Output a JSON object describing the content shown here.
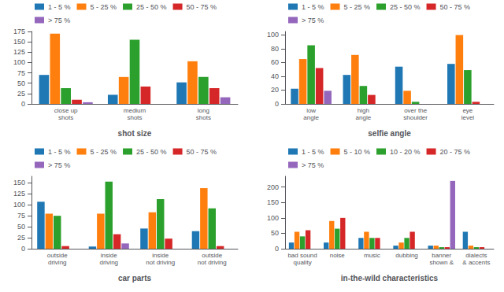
{
  "chart_data": [
    {
      "type": "bar",
      "xlabel": "shot size",
      "categories": [
        "close up\nshots",
        "medium\nshots",
        "long\nshots"
      ],
      "series": [
        {
          "name": "1 - 5 %",
          "color": "#1f77b4",
          "values": [
            70,
            22,
            52
          ]
        },
        {
          "name": "5 - 25 %",
          "color": "#ff7f0e",
          "values": [
            170,
            65,
            103
          ]
        },
        {
          "name": "25 - 50 %",
          "color": "#2ca02c",
          "values": [
            38,
            155,
            65
          ]
        },
        {
          "name": "50 - 75 %",
          "color": "#d62728",
          "values": [
            10,
            42,
            38
          ]
        },
        {
          "name": "> 75 %",
          "color": "#9467bd",
          "values": [
            4,
            0,
            16
          ]
        }
      ],
      "ylim": [
        0,
        175
      ],
      "yticks": [
        0,
        25,
        50,
        75,
        100,
        125,
        150,
        175
      ],
      "grid": false,
      "legend": "upper left"
    },
    {
      "type": "bar",
      "xlabel": "selfie angle",
      "categories": [
        "low\nangle",
        "high\nangle",
        "over the\nshoulder",
        "eye\nlevel"
      ],
      "series": [
        {
          "name": "1 - 5 %",
          "color": "#1f77b4",
          "values": [
            22,
            42,
            54,
            58
          ]
        },
        {
          "name": "5 - 25 %",
          "color": "#ff7f0e",
          "values": [
            65,
            71,
            19,
            100
          ]
        },
        {
          "name": "25 - 50 %",
          "color": "#2ca02c",
          "values": [
            85,
            26,
            3,
            49
          ]
        },
        {
          "name": "50 - 75 %",
          "color": "#d62728",
          "values": [
            52,
            13,
            0,
            3
          ]
        },
        {
          "name": "> 75 %",
          "color": "#9467bd",
          "values": [
            19,
            0,
            0,
            0
          ]
        }
      ],
      "ylim": [
        0,
        105
      ],
      "yticks": [
        0,
        20,
        40,
        60,
        80,
        100
      ],
      "grid": false,
      "legend": "upper left"
    },
    {
      "type": "bar",
      "xlabel": "car parts",
      "categories": [
        "outside\ndriving",
        "inside\ndriving",
        "inside\nnot driving",
        "outside\nnot driving"
      ],
      "series": [
        {
          "name": "1 - 5 %",
          "color": "#1f77b4",
          "values": [
            107,
            5,
            46,
            40
          ]
        },
        {
          "name": "5 - 25 %",
          "color": "#ff7f0e",
          "values": [
            80,
            80,
            83,
            138
          ]
        },
        {
          "name": "25 - 50 %",
          "color": "#2ca02c",
          "values": [
            75,
            153,
            113,
            92
          ]
        },
        {
          "name": "50 - 75 %",
          "color": "#d62728",
          "values": [
            6,
            33,
            23,
            6
          ]
        },
        {
          "name": "> 75 %",
          "color": "#9467bd",
          "values": [
            0,
            12,
            0,
            0
          ]
        }
      ],
      "ylim": [
        0,
        165
      ],
      "yticks": [
        0,
        25,
        50,
        75,
        100,
        125,
        150
      ],
      "grid": false,
      "legend": "upper left"
    },
    {
      "type": "bar",
      "xlabel": "in-the-wild characteristics",
      "categories": [
        "bad sound\nquality",
        "noise",
        "music",
        "dubbing",
        "banner\nshown &",
        "dialects\n& accents"
      ],
      "series": [
        {
          "name": "1 - 5 %",
          "color": "#1f77b4",
          "values": [
            20,
            20,
            35,
            10,
            10,
            55
          ]
        },
        {
          "name": "5 - 10 %",
          "color": "#ff7f0e",
          "values": [
            55,
            90,
            55,
            20,
            10,
            10
          ]
        },
        {
          "name": "10 - 20 %",
          "color": "#2ca02c",
          "values": [
            40,
            65,
            35,
            35,
            5,
            5
          ]
        },
        {
          "name": "20 - 75 %",
          "color": "#d62728",
          "values": [
            60,
            100,
            35,
            55,
            5,
            5
          ]
        },
        {
          "name": "> 75 %",
          "color": "#9467bd",
          "values": [
            0,
            0,
            0,
            0,
            220,
            0
          ]
        }
      ],
      "ylim": [
        0,
        235
      ],
      "yticks": [
        0,
        50,
        100,
        150,
        200
      ],
      "grid": false,
      "legend": "upper left"
    }
  ]
}
